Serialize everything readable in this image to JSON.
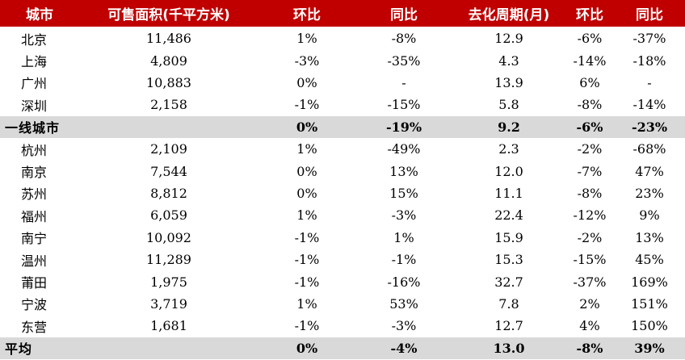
{
  "header": [
    "城市",
    "可售面积(千平方米)",
    "环比",
    "同比",
    "去化周期(月)",
    "环比",
    "同比"
  ],
  "rows": [
    {
      "city": "北京",
      "area": "11,486",
      "mom1": "1%",
      "yoy1": "-8%",
      "cycle": "12.9",
      "mom2": "-6%",
      "yoy2": "-37%"
    },
    {
      "city": "上海",
      "area": "4,809",
      "mom1": "-3%",
      "yoy1": "-35%",
      "cycle": "4.3",
      "mom2": "-14%",
      "yoy2": "-18%"
    },
    {
      "city": "广州",
      "area": "10,883",
      "mom1": "0%",
      "yoy1": "-",
      "cycle": "13.9",
      "mom2": "6%",
      "yoy2": "-"
    },
    {
      "city": "深圳",
      "area": "2,158",
      "mom1": "-1%",
      "yoy1": "-15%",
      "cycle": "5.8",
      "mom2": "-8%",
      "yoy2": "-14%"
    },
    {
      "city": "一线城市",
      "area": "",
      "mom1": "0%",
      "yoy1": "-19%",
      "cycle": "9.2",
      "mom2": "-6%",
      "yoy2": "-23%",
      "summary": true
    },
    {
      "city": "杭州",
      "area": "2,109",
      "mom1": "1%",
      "yoy1": "-49%",
      "cycle": "2.3",
      "mom2": "-2%",
      "yoy2": "-68%"
    },
    {
      "city": "南京",
      "area": "7,544",
      "mom1": "0%",
      "yoy1": "13%",
      "cycle": "12.0",
      "mom2": "-7%",
      "yoy2": "47%"
    },
    {
      "city": "苏州",
      "area": "8,812",
      "mom1": "0%",
      "yoy1": "15%",
      "cycle": "11.1",
      "mom2": "-8%",
      "yoy2": "23%"
    },
    {
      "city": "福州",
      "area": "6,059",
      "mom1": "1%",
      "yoy1": "-3%",
      "cycle": "22.4",
      "mom2": "-12%",
      "yoy2": "9%"
    },
    {
      "city": "南宁",
      "area": "10,092",
      "mom1": "-1%",
      "yoy1": "1%",
      "cycle": "15.9",
      "mom2": "-2%",
      "yoy2": "13%"
    },
    {
      "city": "温州",
      "area": "11,289",
      "mom1": "-1%",
      "yoy1": "-1%",
      "cycle": "15.3",
      "mom2": "-15%",
      "yoy2": "45%"
    },
    {
      "city": "莆田",
      "area": "1,975",
      "mom1": "-1%",
      "yoy1": "-16%",
      "cycle": "32.7",
      "mom2": "-37%",
      "yoy2": "169%"
    },
    {
      "city": "宁波",
      "area": "3,719",
      "mom1": "1%",
      "yoy1": "53%",
      "cycle": "7.8",
      "mom2": "2%",
      "yoy2": "151%"
    },
    {
      "city": "东营",
      "area": "1,681",
      "mom1": "-1%",
      "yoy1": "-3%",
      "cycle": "12.7",
      "mom2": "4%",
      "yoy2": "150%"
    },
    {
      "city": "平均",
      "area": "",
      "mom1": "0%",
      "yoy1": "-4%",
      "cycle": "13.0",
      "mom2": "-8%",
      "yoy2": "39%",
      "summary": true
    }
  ],
  "colors": {
    "header_bg": "#c00000",
    "header_text": "#ffffff",
    "summary_bg": "#d9d9d9"
  }
}
